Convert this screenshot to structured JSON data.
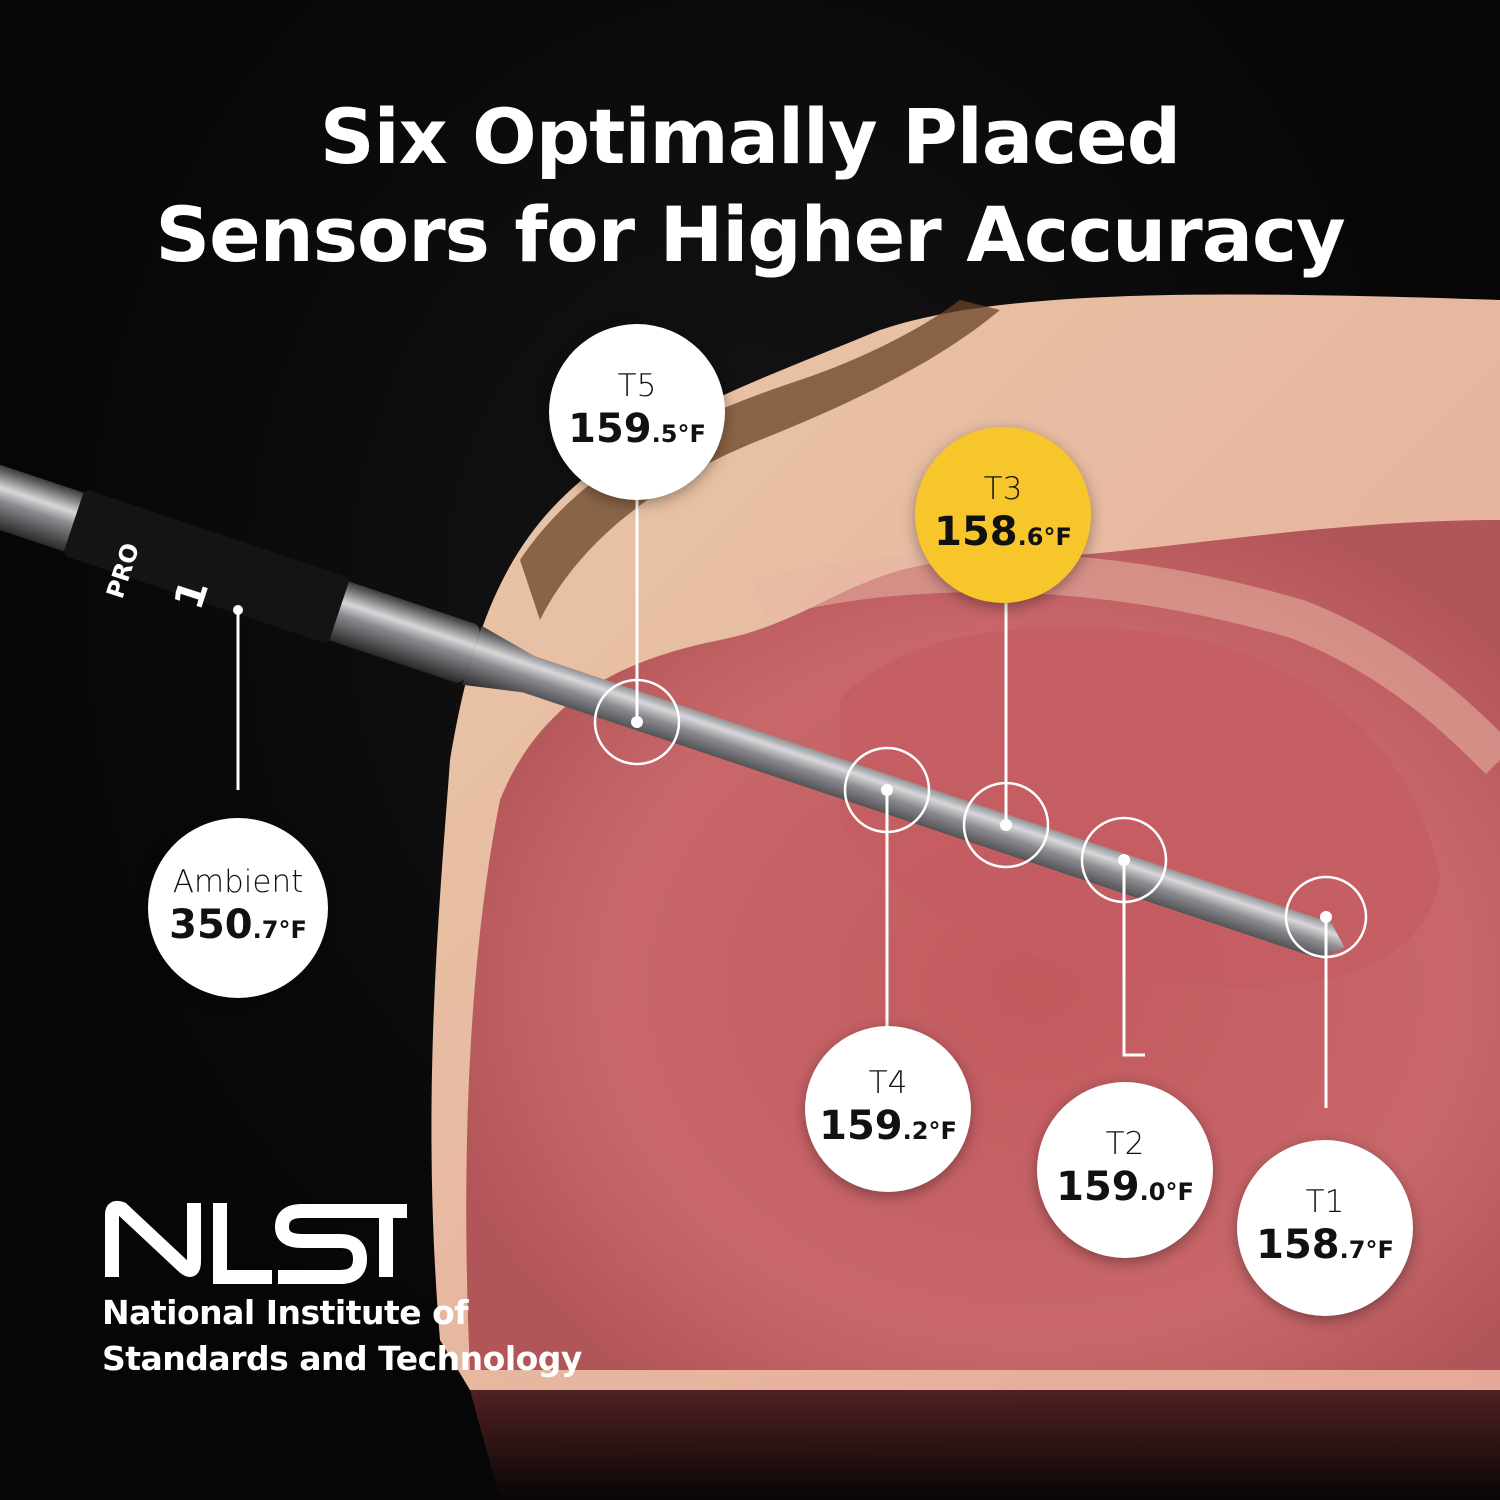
{
  "title": {
    "line1": "Six Optimally Placed",
    "line2": "Sensors for Higher Accuracy"
  },
  "probe": {
    "brand_mark": "PRO",
    "number": "1"
  },
  "colors": {
    "highlight": "#f7c62b",
    "background": "#070707",
    "bubble": "#ffffff"
  },
  "sensors": [
    {
      "label": "Ambient",
      "int": "350",
      "dec": ".7°F",
      "highlight": false
    },
    {
      "label": "T5",
      "int": "159",
      "dec": ".5°F",
      "highlight": false
    },
    {
      "label": "T3",
      "int": "158",
      "dec": ".6°F",
      "highlight": true
    },
    {
      "label": "T4",
      "int": "159",
      "dec": ".2°F",
      "highlight": false
    },
    {
      "label": "T2",
      "int": "159",
      "dec": ".0°F",
      "highlight": false
    },
    {
      "label": "T1",
      "int": "158",
      "dec": ".7°F",
      "highlight": false
    }
  ],
  "logo": {
    "mark": "NIST",
    "line1": "National Institute of",
    "line2": "Standards and Technology"
  }
}
